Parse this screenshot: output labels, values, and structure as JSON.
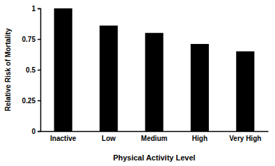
{
  "chart_data": {
    "type": "bar",
    "x_label": "Physical Activity Level",
    "y_label": "Relative Risk of Mortality",
    "categories": [
      "Inactive",
      "Low",
      "Medium",
      "High",
      "Very High"
    ],
    "values": [
      1,
      0.86,
      0.8,
      0.71,
      0.65
    ],
    "color": "#000000",
    "ylim": [
      0,
      1
    ],
    "yticks": [
      0,
      0.25,
      0.5,
      0.75,
      1
    ],
    "grid": false
  }
}
